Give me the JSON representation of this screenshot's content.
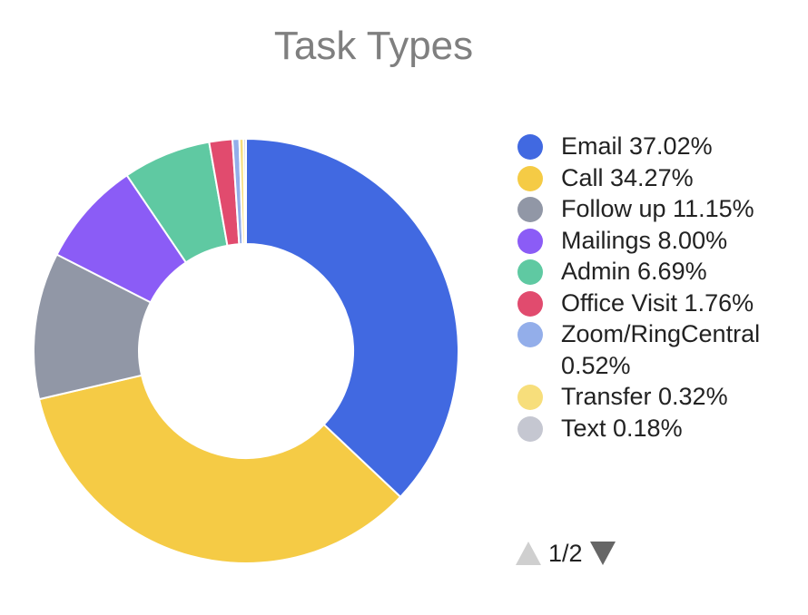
{
  "chart_data": {
    "type": "pie",
    "title": "Task Types",
    "categories": [
      "Email",
      "Call",
      "Follow up",
      "Mailings",
      "Admin",
      "Office Visit",
      "Zoom/RingCentral",
      "Transfer",
      "Text"
    ],
    "values": [
      37.02,
      34.27,
      11.15,
      8.0,
      6.69,
      1.76,
      0.52,
      0.32,
      0.18
    ],
    "value_labels": [
      "37.02%",
      "34.27%",
      "11.15%",
      "8.00%",
      "6.69%",
      "1.76%",
      "0.52%",
      "0.32%",
      "0.18%"
    ],
    "colors": [
      "#4169E1",
      "#F5CB45",
      "#9197A6",
      "#8B5CF6",
      "#5FC9A2",
      "#E14B6E",
      "#93AEEA",
      "#F7DE7B",
      "#C5C7D1"
    ],
    "donut": true,
    "legend_position": "right"
  },
  "legend": {
    "items": [
      {
        "text": "Email 37.02%"
      },
      {
        "text": "Call 34.27%"
      },
      {
        "text": "Follow up 11.15%"
      },
      {
        "text": "Mailings 8.00%"
      },
      {
        "text": "Admin 6.69%"
      },
      {
        "text": "Office Visit 1.76%"
      },
      {
        "text": "Zoom/RingCentral 0.52%"
      },
      {
        "text": "Transfer 0.32%"
      },
      {
        "text": "Text 0.18%"
      }
    ],
    "pager_text": "1/2",
    "pager_up_icon": "triangle-up-icon",
    "pager_down_icon": "triangle-down-icon"
  }
}
